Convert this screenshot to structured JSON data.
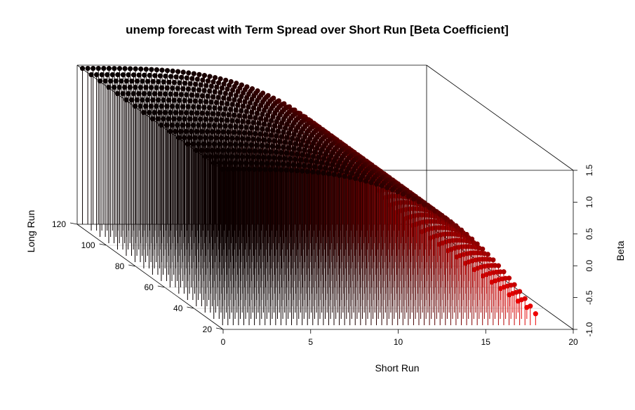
{
  "chart_data": {
    "type": "scatter",
    "subtype": "3d-scatter-with-drop-lines",
    "title": "unemp forecast with Term Spread over Short Run [Beta Coefficient]",
    "xlabel": "Short Run",
    "ylabel": "Long Run",
    "zlabel": "Beta",
    "xlim": [
      0,
      20
    ],
    "ylim": [
      20,
      120
    ],
    "zlim": [
      -1.0,
      1.5
    ],
    "x_ticks": [
      "0",
      "5",
      "10",
      "15",
      "20"
    ],
    "y_ticks": [
      "20",
      "40",
      "60",
      "80",
      "100",
      "120"
    ],
    "z_ticks": [
      "-1.0",
      "-0.5",
      "0.0",
      "0.5",
      "1.0",
      "1.5"
    ],
    "grid": false,
    "color_scale": {
      "high": "#000000",
      "low": "#ff0000"
    },
    "series": [
      {
        "long_run": 120,
        "short_run_range": [
          1,
          60
        ]
      },
      {
        "long_run": 114,
        "short_run_range": [
          1,
          60
        ]
      },
      {
        "long_run": 108,
        "short_run_range": [
          1,
          60
        ]
      },
      {
        "long_run": 102,
        "short_run_range": [
          1,
          60
        ]
      },
      {
        "long_run": 96,
        "short_run_range": [
          1,
          60
        ]
      },
      {
        "long_run": 90,
        "short_run_range": [
          1,
          60
        ]
      },
      {
        "long_run": 84,
        "short_run_range": [
          1,
          60
        ]
      },
      {
        "long_run": 78,
        "short_run_range": [
          1,
          60
        ]
      },
      {
        "long_run": 72,
        "short_run_range": [
          1,
          60
        ]
      },
      {
        "long_run": 66,
        "short_run_range": [
          1,
          60
        ]
      },
      {
        "long_run": 60,
        "short_run_range": [
          1,
          60
        ]
      },
      {
        "long_run": 54,
        "short_run_range": [
          1,
          60
        ]
      },
      {
        "long_run": 48,
        "short_run_range": [
          1,
          60
        ]
      },
      {
        "long_run": 42,
        "short_run_range": [
          1,
          60
        ]
      },
      {
        "long_run": 36,
        "short_run_range": [
          1,
          60
        ]
      },
      {
        "long_run": 30,
        "short_run_range": [
          1,
          60
        ]
      },
      {
        "long_run": 24,
        "short_run_range": [
          1,
          60
        ]
      }
    ],
    "beta_profile": {
      "start": 1.45,
      "end": -0.82,
      "shape": "concave-decreasing"
    }
  }
}
